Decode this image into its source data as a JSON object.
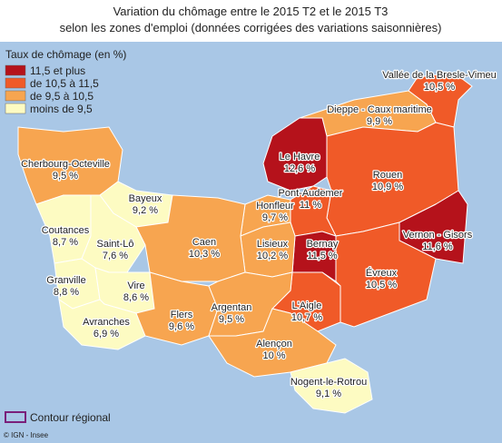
{
  "title": "Variation du chômage entre le 2015 T2 et le 2015 T3",
  "subtitle": "selon les zones d'emploi (données corrigées des variations saisonnières)",
  "legend": {
    "title": "Taux de chômage (en %)",
    "classes": [
      {
        "label": "11,5 et plus",
        "color": "#b5121b"
      },
      {
        "label": "de 10,5 à 11,5",
        "color": "#f05a28"
      },
      {
        "label": "de 9,5 à 10,5",
        "color": "#f7a550"
      },
      {
        "label": "moins de 9,5",
        "color": "#fdfbc2"
      }
    ],
    "outline": "Contour régional"
  },
  "source": "© IGN - Insee",
  "regions": [
    {
      "name": "Vallée de la Bresle-Vimeu",
      "rate": "10,5 %",
      "class": 1
    },
    {
      "name": "Dieppe - Caux maritime",
      "rate": "9,9 %",
      "class": 2
    },
    {
      "name": "Le Havre",
      "rate": "12,6 %",
      "class": 0
    },
    {
      "name": "Rouen",
      "rate": "10,9 %",
      "class": 1
    },
    {
      "name": "Pont-Audemer",
      "rate": "11 %",
      "class": 1
    },
    {
      "name": "Vernon - Gisors",
      "rate": "11,6 %",
      "class": 0
    },
    {
      "name": "Bernay",
      "rate": "11,5 %",
      "class": 0
    },
    {
      "name": "Évreux",
      "rate": "10,5 %",
      "class": 1
    },
    {
      "name": "L'Aigle",
      "rate": "10,7 %",
      "class": 1
    },
    {
      "name": "Cherbourg-Octeville",
      "rate": "9,5 %",
      "class": 2
    },
    {
      "name": "Bayeux",
      "rate": "9,2 %",
      "class": 3
    },
    {
      "name": "Honfleur",
      "rate": "9,7 %",
      "class": 2
    },
    {
      "name": "Lisieux",
      "rate": "10,2 %",
      "class": 2
    },
    {
      "name": "Caen",
      "rate": "10,3 %",
      "class": 2
    },
    {
      "name": "Coutances",
      "rate": "8,7 %",
      "class": 3
    },
    {
      "name": "Saint-Lô",
      "rate": "7,6 %",
      "class": 3
    },
    {
      "name": "Granville",
      "rate": "8,8 %",
      "class": 3
    },
    {
      "name": "Vire",
      "rate": "8,6 %",
      "class": 3
    },
    {
      "name": "Avranches",
      "rate": "6,9 %",
      "class": 3
    },
    {
      "name": "Flers",
      "rate": "9,6 %",
      "class": 2
    },
    {
      "name": "Argentan",
      "rate": "9,5 %",
      "class": 2
    },
    {
      "name": "Alençon",
      "rate": "10 %",
      "class": 2
    },
    {
      "name": "Nogent-le-Rotrou",
      "rate": "9,1 %",
      "class": 3
    }
  ]
}
